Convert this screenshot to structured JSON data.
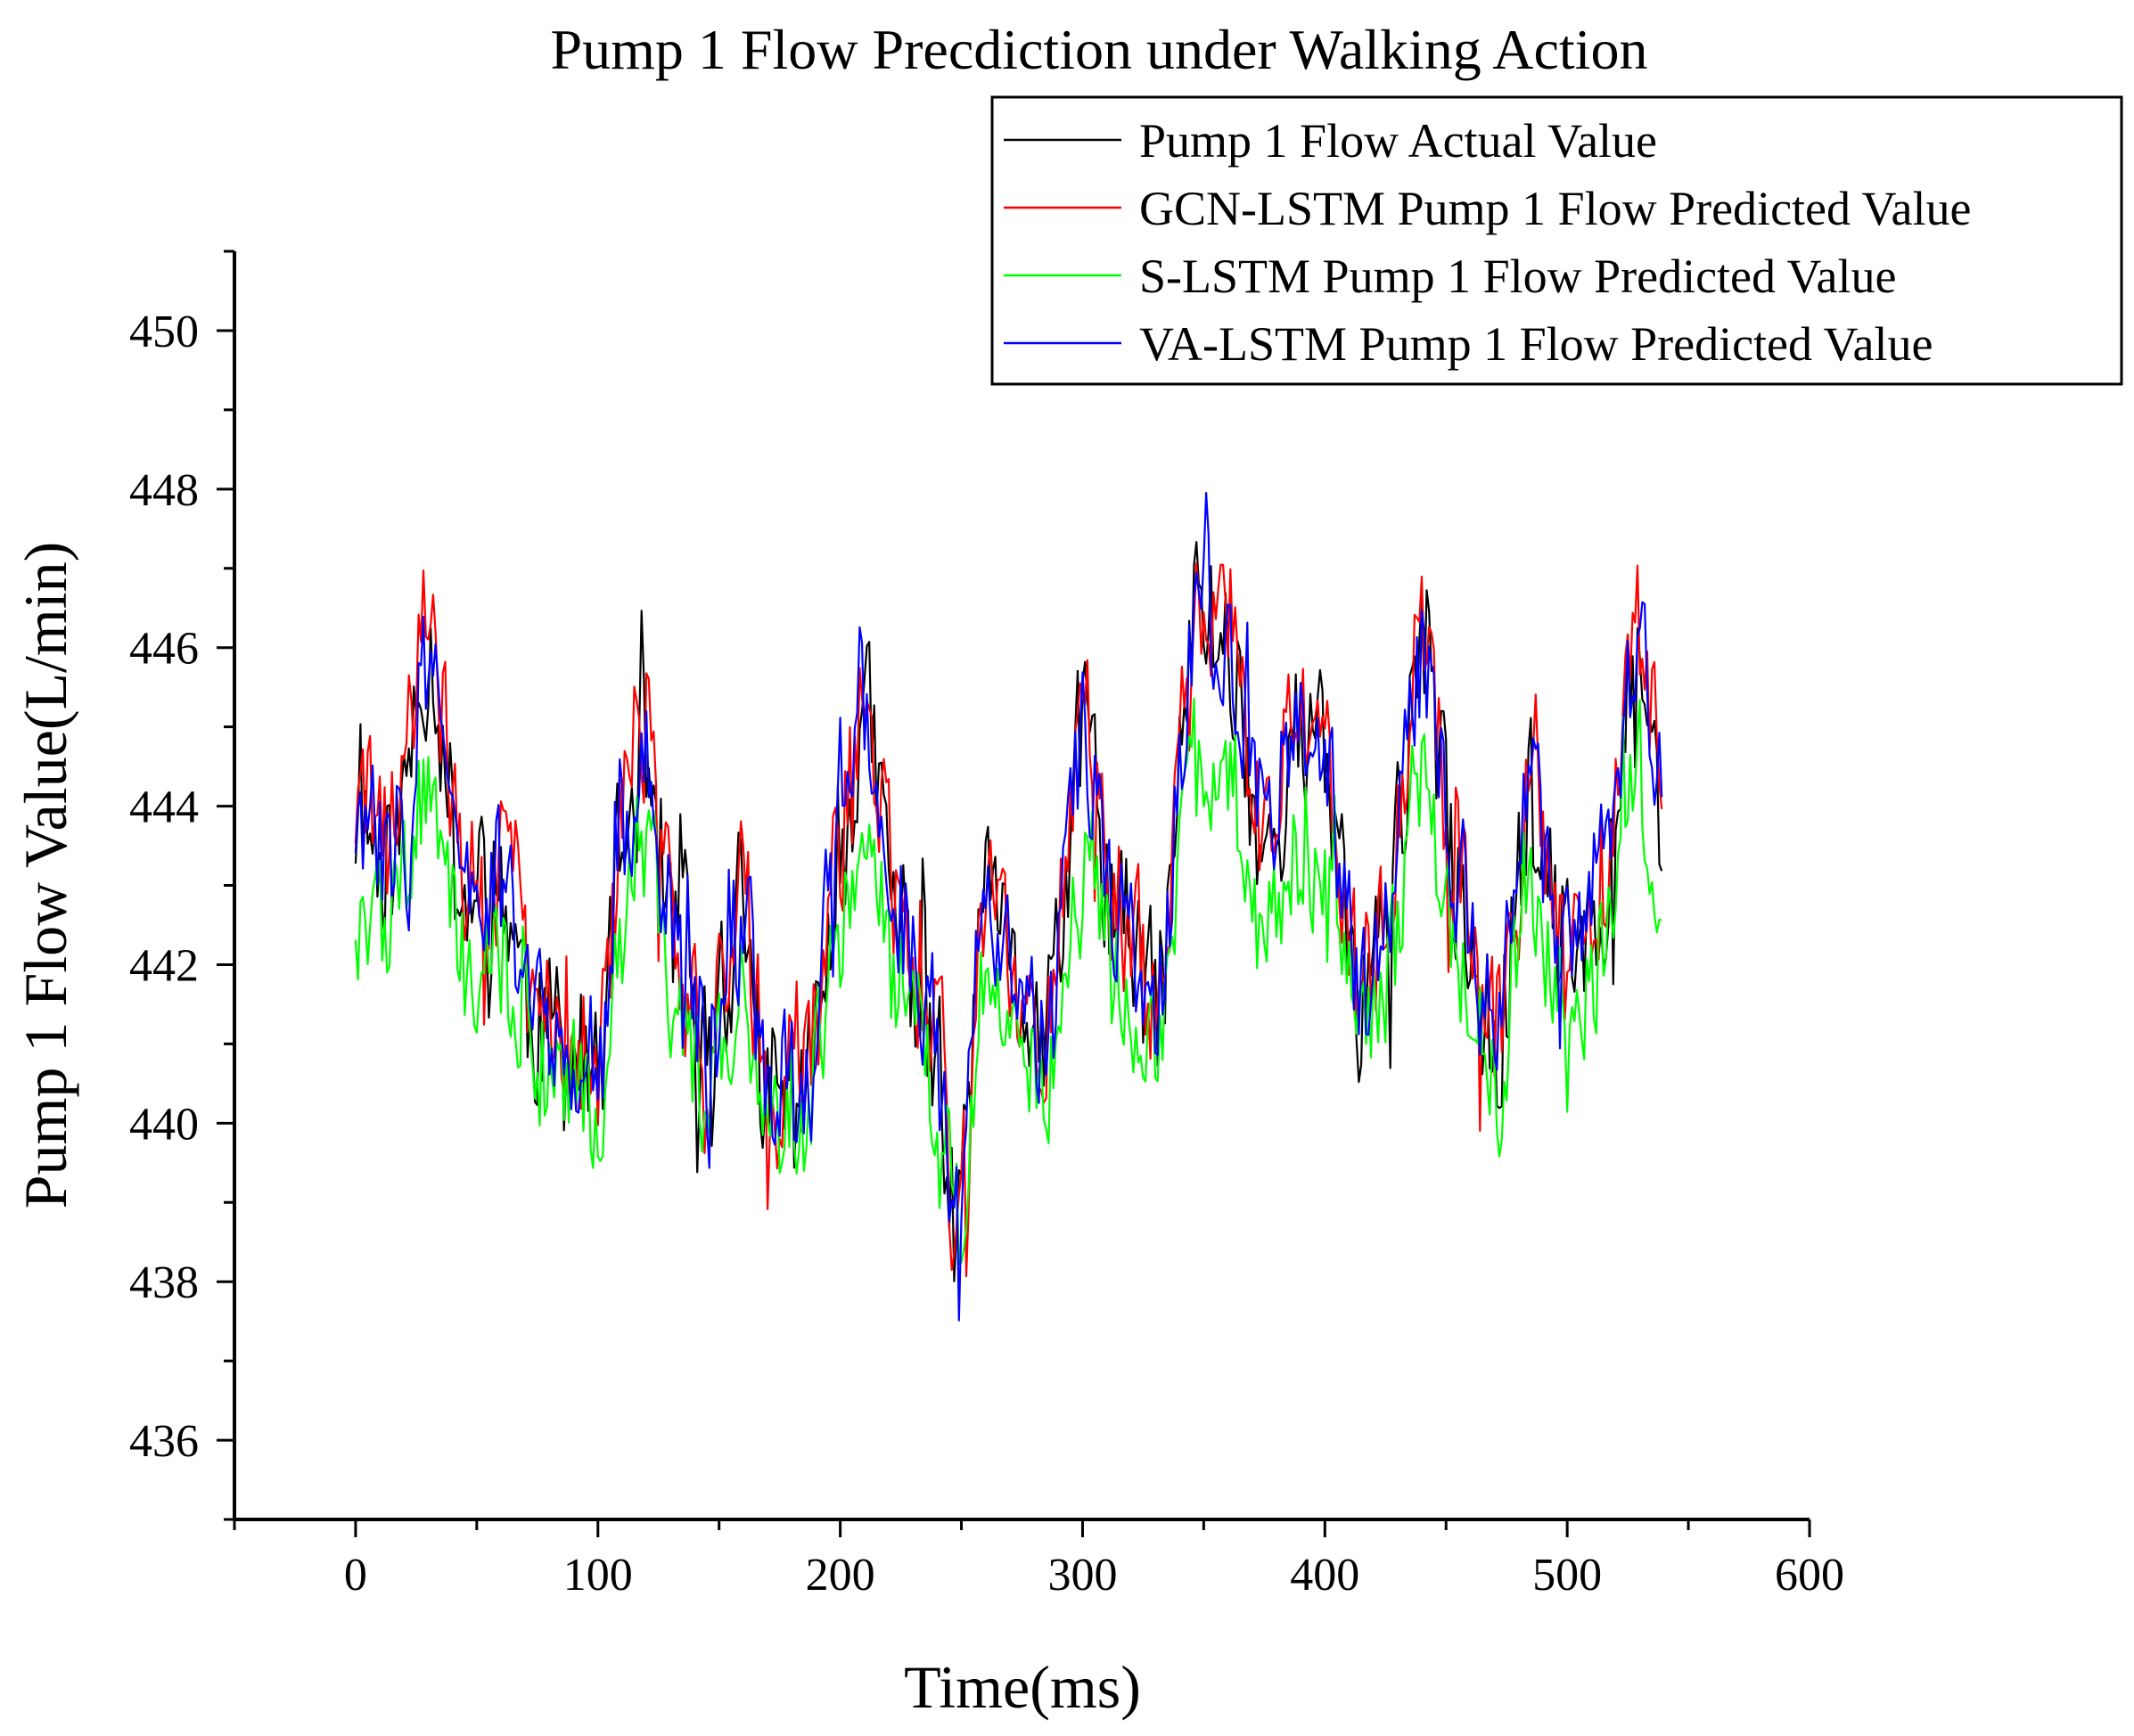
{
  "chart_data": {
    "type": "line",
    "title": "Pump 1 Flow Precdiction under Walking Action",
    "xlabel": "Time(ms)",
    "ylabel": "Pump 1 Flow Value(L/min)",
    "xlim": [
      -50,
      600
    ],
    "ylim": [
      435,
      451
    ],
    "xticks": [
      0,
      100,
      200,
      300,
      400,
      500,
      600
    ],
    "yticks": [
      436,
      438,
      440,
      442,
      444,
      446,
      448,
      450
    ],
    "x_start": 0,
    "x_end": 539,
    "x_step": 1,
    "legend_position": "top-right",
    "series": [
      {
        "key": "actual",
        "name": "Pump 1 Flow Actual Value",
        "color": "#000000",
        "seed": 11,
        "noise": 1.35,
        "offset": 0.0,
        "smooth": 1.0
      },
      {
        "key": "gcn",
        "name": "GCN-LSTM Pump 1 Flow Predicted Value",
        "color": "#ff0000",
        "seed": 29,
        "noise": 1.25,
        "offset": 0.2,
        "smooth": 1.0
      },
      {
        "key": "slstm",
        "name": "S-LSTM Pump 1 Flow Predicted Value",
        "color": "#00ff00",
        "seed": 47,
        "noise": 1.05,
        "offset": -0.9,
        "smooth": 0.75
      },
      {
        "key": "va",
        "name": "VA-LSTM Pump 1 Flow Predicted Value",
        "color": "#0000ff",
        "seed": 83,
        "noise": 1.15,
        "offset": 0.05,
        "smooth": 0.95
      }
    ],
    "trend_points": [
      [
        0,
        443.8
      ],
      [
        15,
        443.4
      ],
      [
        30,
        446.0
      ],
      [
        45,
        442.8
      ],
      [
        60,
        443.0
      ],
      [
        75,
        441.2
      ],
      [
        90,
        440.8
      ],
      [
        100,
        440.5
      ],
      [
        110,
        443.5
      ],
      [
        120,
        444.8
      ],
      [
        130,
        442.5
      ],
      [
        145,
        440.8
      ],
      [
        160,
        442.5
      ],
      [
        170,
        440.2
      ],
      [
        185,
        440.3
      ],
      [
        200,
        443.5
      ],
      [
        210,
        445.0
      ],
      [
        225,
        442.5
      ],
      [
        240,
        440.8
      ],
      [
        248,
        438.5
      ],
      [
        260,
        442.5
      ],
      [
        275,
        441.5
      ],
      [
        285,
        441.0
      ],
      [
        300,
        444.8
      ],
      [
        315,
        442.5
      ],
      [
        330,
        441.5
      ],
      [
        348,
        446.5
      ],
      [
        360,
        446.0
      ],
      [
        375,
        443.5
      ],
      [
        390,
        444.8
      ],
      [
        400,
        444.5
      ],
      [
        415,
        441.5
      ],
      [
        425,
        442.5
      ],
      [
        440,
        446.0
      ],
      [
        455,
        443.0
      ],
      [
        470,
        441.0
      ],
      [
        485,
        444.0
      ],
      [
        500,
        442.0
      ],
      [
        515,
        443.0
      ],
      [
        530,
        446.0
      ],
      [
        539,
        444.0
      ]
    ]
  }
}
